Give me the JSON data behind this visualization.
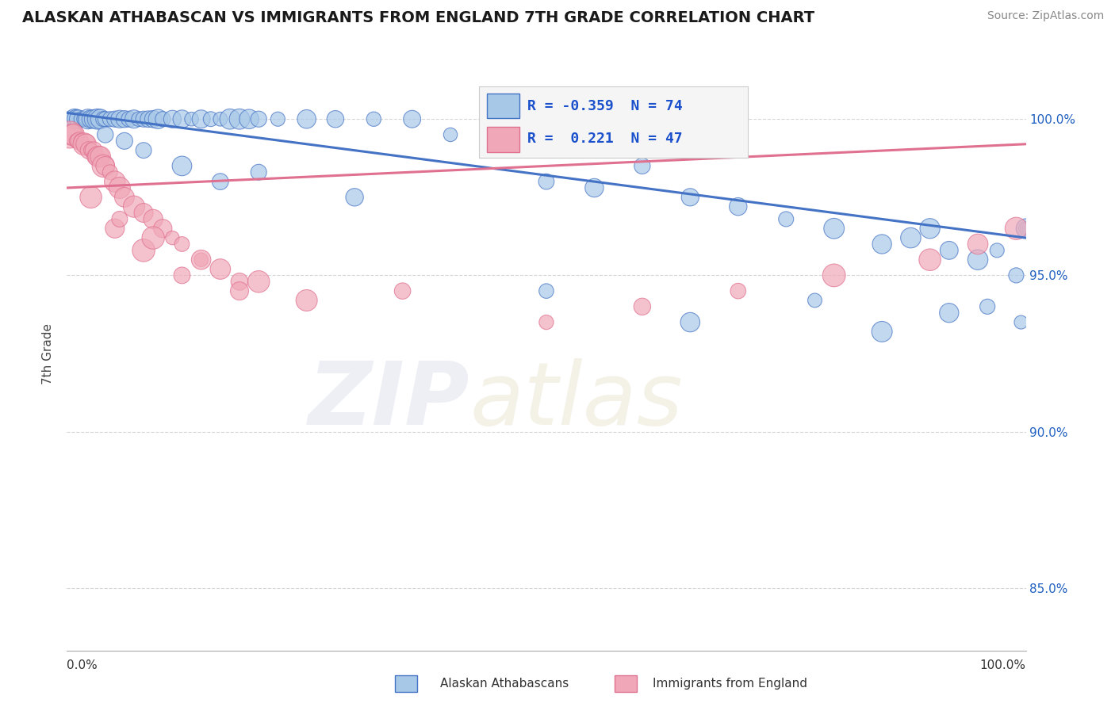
{
  "title": "ALASKAN ATHABASCAN VS IMMIGRANTS FROM ENGLAND 7TH GRADE CORRELATION CHART",
  "source": "Source: ZipAtlas.com",
  "ylabel": "7th Grade",
  "yticks": [
    85.0,
    90.0,
    95.0,
    100.0
  ],
  "xlim": [
    0.0,
    100.0
  ],
  "ylim": [
    83.0,
    102.0
  ],
  "legend_blue_r": "-0.359",
  "legend_blue_n": "74",
  "legend_pink_r": "0.221",
  "legend_pink_n": "47",
  "blue_color": "#a8c8e8",
  "pink_color": "#f0a8b8",
  "blue_line_color": "#4472c4",
  "pink_line_color": "#e07090",
  "grid_color": "#cccccc",
  "blue_trend_start": 100.2,
  "blue_trend_end": 96.2,
  "pink_trend_start": 97.8,
  "pink_trend_end": 99.2,
  "blue_scatter_x": [
    0.5,
    0.8,
    1.0,
    1.2,
    1.5,
    1.8,
    2.0,
    2.2,
    2.5,
    2.8,
    3.0,
    3.2,
    3.5,
    3.8,
    4.0,
    4.5,
    5.0,
    5.5,
    6.0,
    6.5,
    7.0,
    7.5,
    8.0,
    8.5,
    9.0,
    9.5,
    10.0,
    11.0,
    12.0,
    13.0,
    14.0,
    15.0,
    16.0,
    17.0,
    18.0,
    19.0,
    20.0,
    22.0,
    25.0,
    28.0,
    32.0,
    36.0,
    40.0,
    45.0,
    50.0,
    55.0,
    60.0,
    65.0,
    70.0,
    75.0,
    80.0,
    85.0,
    88.0,
    90.0,
    92.0,
    95.0,
    97.0,
    99.0,
    100.0,
    4.0,
    6.0,
    8.0,
    12.0,
    16.0,
    20.0,
    30.0,
    50.0,
    65.0,
    78.0,
    85.0,
    92.0,
    96.0,
    99.5,
    100.0
  ],
  "blue_scatter_y": [
    100.0,
    100.0,
    100.0,
    100.0,
    100.0,
    100.0,
    100.0,
    100.0,
    100.0,
    100.0,
    100.0,
    100.0,
    100.0,
    100.0,
    100.0,
    100.0,
    100.0,
    100.0,
    100.0,
    100.0,
    100.0,
    100.0,
    100.0,
    100.0,
    100.0,
    100.0,
    100.0,
    100.0,
    100.0,
    100.0,
    100.0,
    100.0,
    100.0,
    100.0,
    100.0,
    100.0,
    100.0,
    100.0,
    100.0,
    100.0,
    100.0,
    100.0,
    99.5,
    99.2,
    98.0,
    97.8,
    98.5,
    97.5,
    97.2,
    96.8,
    96.5,
    96.0,
    96.2,
    96.5,
    95.8,
    95.5,
    95.8,
    95.0,
    96.5,
    99.5,
    99.3,
    99.0,
    98.5,
    98.0,
    98.3,
    97.5,
    94.5,
    93.5,
    94.2,
    93.2,
    93.8,
    94.0,
    93.5,
    96.5
  ],
  "pink_scatter_x": [
    0.3,
    0.5,
    0.7,
    1.0,
    1.3,
    1.5,
    1.8,
    2.0,
    2.3,
    2.5,
    2.8,
    3.0,
    3.3,
    3.5,
    3.8,
    4.0,
    4.5,
    5.0,
    5.5,
    6.0,
    7.0,
    8.0,
    9.0,
    10.0,
    11.0,
    12.0,
    14.0,
    16.0,
    18.0,
    5.0,
    8.0,
    12.0,
    18.0,
    25.0,
    35.0,
    50.0,
    60.0,
    70.0,
    80.0,
    90.0,
    95.0,
    99.0,
    2.5,
    5.5,
    9.0,
    14.0,
    20.0
  ],
  "pink_scatter_y": [
    99.5,
    99.5,
    99.5,
    99.3,
    99.3,
    99.3,
    99.2,
    99.2,
    99.0,
    99.0,
    99.0,
    98.8,
    98.8,
    98.8,
    98.5,
    98.5,
    98.3,
    98.0,
    97.8,
    97.5,
    97.2,
    97.0,
    96.8,
    96.5,
    96.2,
    96.0,
    95.5,
    95.2,
    94.8,
    96.5,
    95.8,
    95.0,
    94.5,
    94.2,
    94.5,
    93.5,
    94.0,
    94.5,
    95.0,
    95.5,
    96.0,
    96.5,
    97.5,
    96.8,
    96.2,
    95.5,
    94.8
  ]
}
